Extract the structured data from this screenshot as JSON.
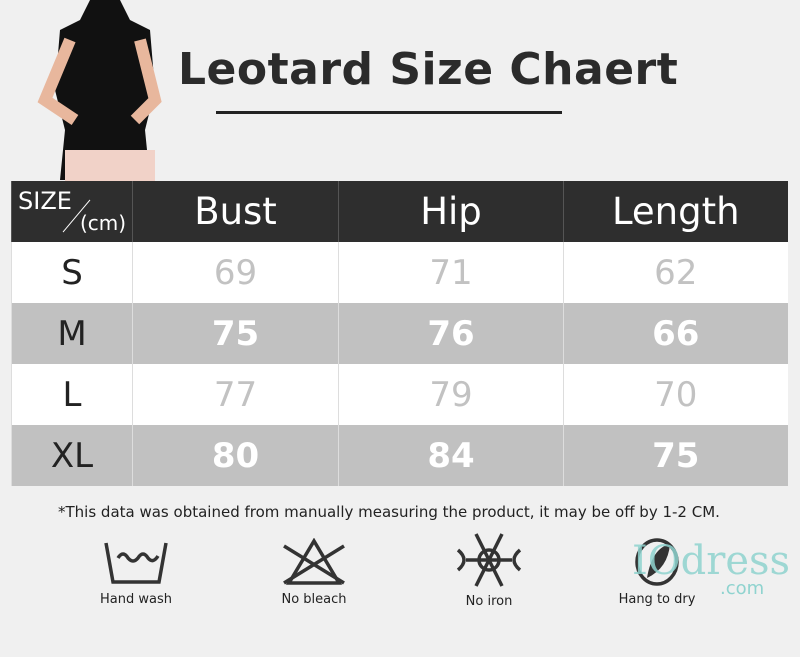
{
  "title": "Leotard Size Chaert",
  "table": {
    "size_header": "SIZE",
    "unit_header": "(cm)",
    "columns": [
      "Bust",
      "Hip",
      "Length"
    ],
    "rows": [
      {
        "size": "S",
        "values": [
          "69",
          "71",
          "62"
        ]
      },
      {
        "size": "M",
        "values": [
          "75",
          "76",
          "66"
        ]
      },
      {
        "size": "L",
        "values": [
          "77",
          "79",
          "70"
        ]
      },
      {
        "size": "XL",
        "values": [
          "80",
          "84",
          "75"
        ]
      }
    ]
  },
  "note": "*This data was obtained from manually measuring the product, it may be off by 1-2 CM.",
  "care": [
    {
      "icon": "hand-wash-icon",
      "label": "Hand wash"
    },
    {
      "icon": "no-bleach-icon",
      "label": "No bleach"
    },
    {
      "icon": "no-iron-icon",
      "label": "No iron"
    },
    {
      "icon": "hang-dry-icon",
      "label": "Hang to dry"
    }
  ],
  "watermark": {
    "text": "IOdress",
    ".com": ".com"
  },
  "colors": {
    "header": "#2e2e2e",
    "alt_row": "#c1c1c1",
    "background": "#f0f0f0"
  }
}
